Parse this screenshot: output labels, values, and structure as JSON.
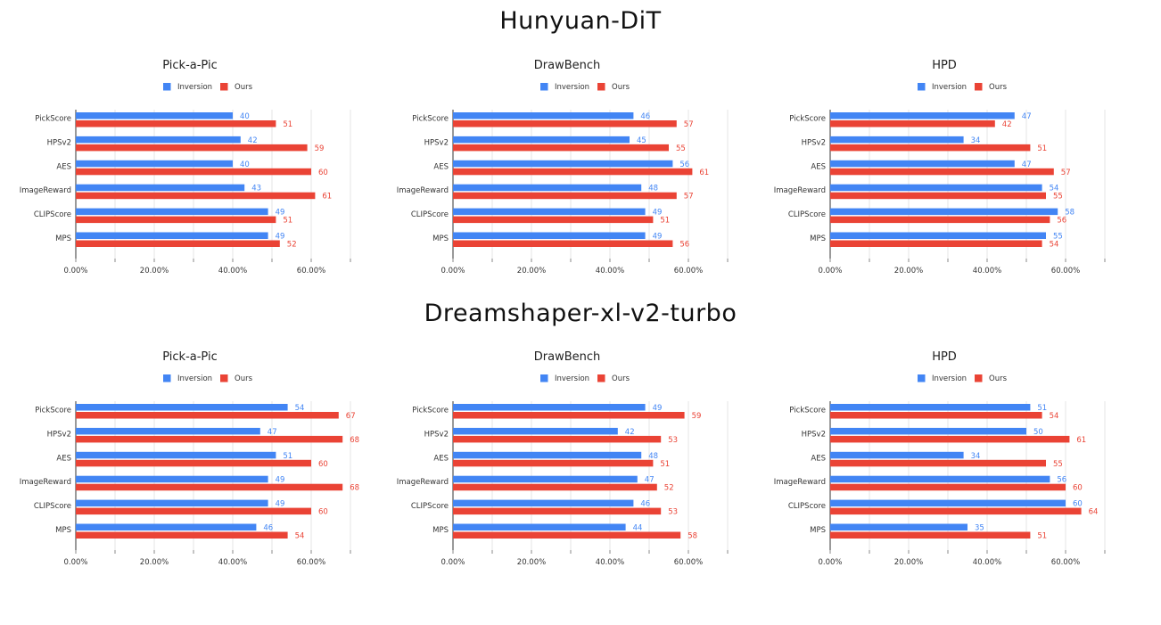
{
  "sections": [
    {
      "title": "Hunyuan-DiT"
    },
    {
      "title": "Dreamshaper-xl-v2-turbo"
    }
  ],
  "colors": {
    "inversion": "#4285f4",
    "ours": "#ea4335",
    "gridline": "#e6e6e6",
    "axis": "#333333"
  },
  "chart_data": [
    {
      "section": "Hunyuan-DiT",
      "type": "bar",
      "orientation": "horizontal",
      "title": "Pick-a-Pic",
      "categories": [
        "PickScore",
        "HPSv2",
        "AES",
        "ImageReward",
        "CLIPScore",
        "MPS"
      ],
      "series": [
        {
          "name": "Inversion",
          "values": [
            40,
            42,
            40,
            43,
            49,
            49
          ]
        },
        {
          "name": "Ours",
          "values": [
            51,
            59,
            60,
            61,
            51,
            52
          ]
        }
      ],
      "xticks": [
        "0.00%",
        "20.00%",
        "40.00%",
        "60.00%"
      ],
      "xlim": [
        0,
        80
      ],
      "grid": true,
      "legend": "top"
    },
    {
      "section": "Hunyuan-DiT",
      "type": "bar",
      "orientation": "horizontal",
      "title": "DrawBench",
      "categories": [
        "PickScore",
        "HPSv2",
        "AES",
        "ImageReward",
        "CLIPScore",
        "MPS"
      ],
      "series": [
        {
          "name": "Inversion",
          "values": [
            46,
            45,
            56,
            48,
            49,
            49
          ]
        },
        {
          "name": "Ours",
          "values": [
            57,
            55,
            61,
            57,
            51,
            56
          ]
        }
      ],
      "xticks": [
        "0.00%",
        "20.00%",
        "40.00%",
        "60.00%"
      ],
      "xlim": [
        0,
        80
      ],
      "grid": true,
      "legend": "top"
    },
    {
      "section": "Hunyuan-DiT",
      "type": "bar",
      "orientation": "horizontal",
      "title": "HPD",
      "categories": [
        "PickScore",
        "HPSv2",
        "AES",
        "ImageReward",
        "CLIPScore",
        "MPS"
      ],
      "series": [
        {
          "name": "Inversion",
          "values": [
            47,
            34,
            47,
            54,
            58,
            55
          ]
        },
        {
          "name": "Ours",
          "values": [
            42,
            51,
            57,
            55,
            56,
            54
          ]
        }
      ],
      "xticks": [
        "0.00%",
        "20.00%",
        "40.00%",
        "60.00%"
      ],
      "xlim": [
        0,
        80
      ],
      "grid": true,
      "legend": "top"
    },
    {
      "section": "Dreamshaper-xl-v2-turbo",
      "type": "bar",
      "orientation": "horizontal",
      "title": "Pick-a-Pic",
      "categories": [
        "PickScore",
        "HPSv2",
        "AES",
        "ImageReward",
        "CLIPScore",
        "MPS"
      ],
      "series": [
        {
          "name": "Inversion",
          "values": [
            54,
            47,
            51,
            49,
            49,
            46
          ]
        },
        {
          "name": "Ours",
          "values": [
            67,
            68,
            60,
            68,
            60,
            54
          ]
        }
      ],
      "xticks": [
        "0.00%",
        "20.00%",
        "40.00%",
        "60.00%"
      ],
      "xlim": [
        0,
        80
      ],
      "grid": true,
      "legend": "top"
    },
    {
      "section": "Dreamshaper-xl-v2-turbo",
      "type": "bar",
      "orientation": "horizontal",
      "title": "DrawBench",
      "categories": [
        "PickScore",
        "HPSv2",
        "AES",
        "ImageReward",
        "CLIPScore",
        "MPS"
      ],
      "series": [
        {
          "name": "Inversion",
          "values": [
            49,
            42,
            48,
            47,
            46,
            44
          ]
        },
        {
          "name": "Ours",
          "values": [
            59,
            53,
            51,
            52,
            53,
            58
          ]
        }
      ],
      "xticks": [
        "0.00%",
        "20.00%",
        "40.00%",
        "60.00%"
      ],
      "xlim": [
        0,
        80
      ],
      "grid": true,
      "legend": "top"
    },
    {
      "section": "Dreamshaper-xl-v2-turbo",
      "type": "bar",
      "orientation": "horizontal",
      "title": "HPD",
      "categories": [
        "PickScore",
        "HPSv2",
        "AES",
        "ImageReward",
        "CLIPScore",
        "MPS"
      ],
      "series": [
        {
          "name": "Inversion",
          "values": [
            51,
            50,
            34,
            56,
            60,
            35
          ]
        },
        {
          "name": "Ours",
          "values": [
            54,
            61,
            55,
            60,
            64,
            51
          ]
        }
      ],
      "xticks": [
        "0.00%",
        "20.00%",
        "40.00%",
        "60.00%"
      ],
      "xlim": [
        0,
        80
      ],
      "grid": true,
      "legend": "top"
    }
  ]
}
